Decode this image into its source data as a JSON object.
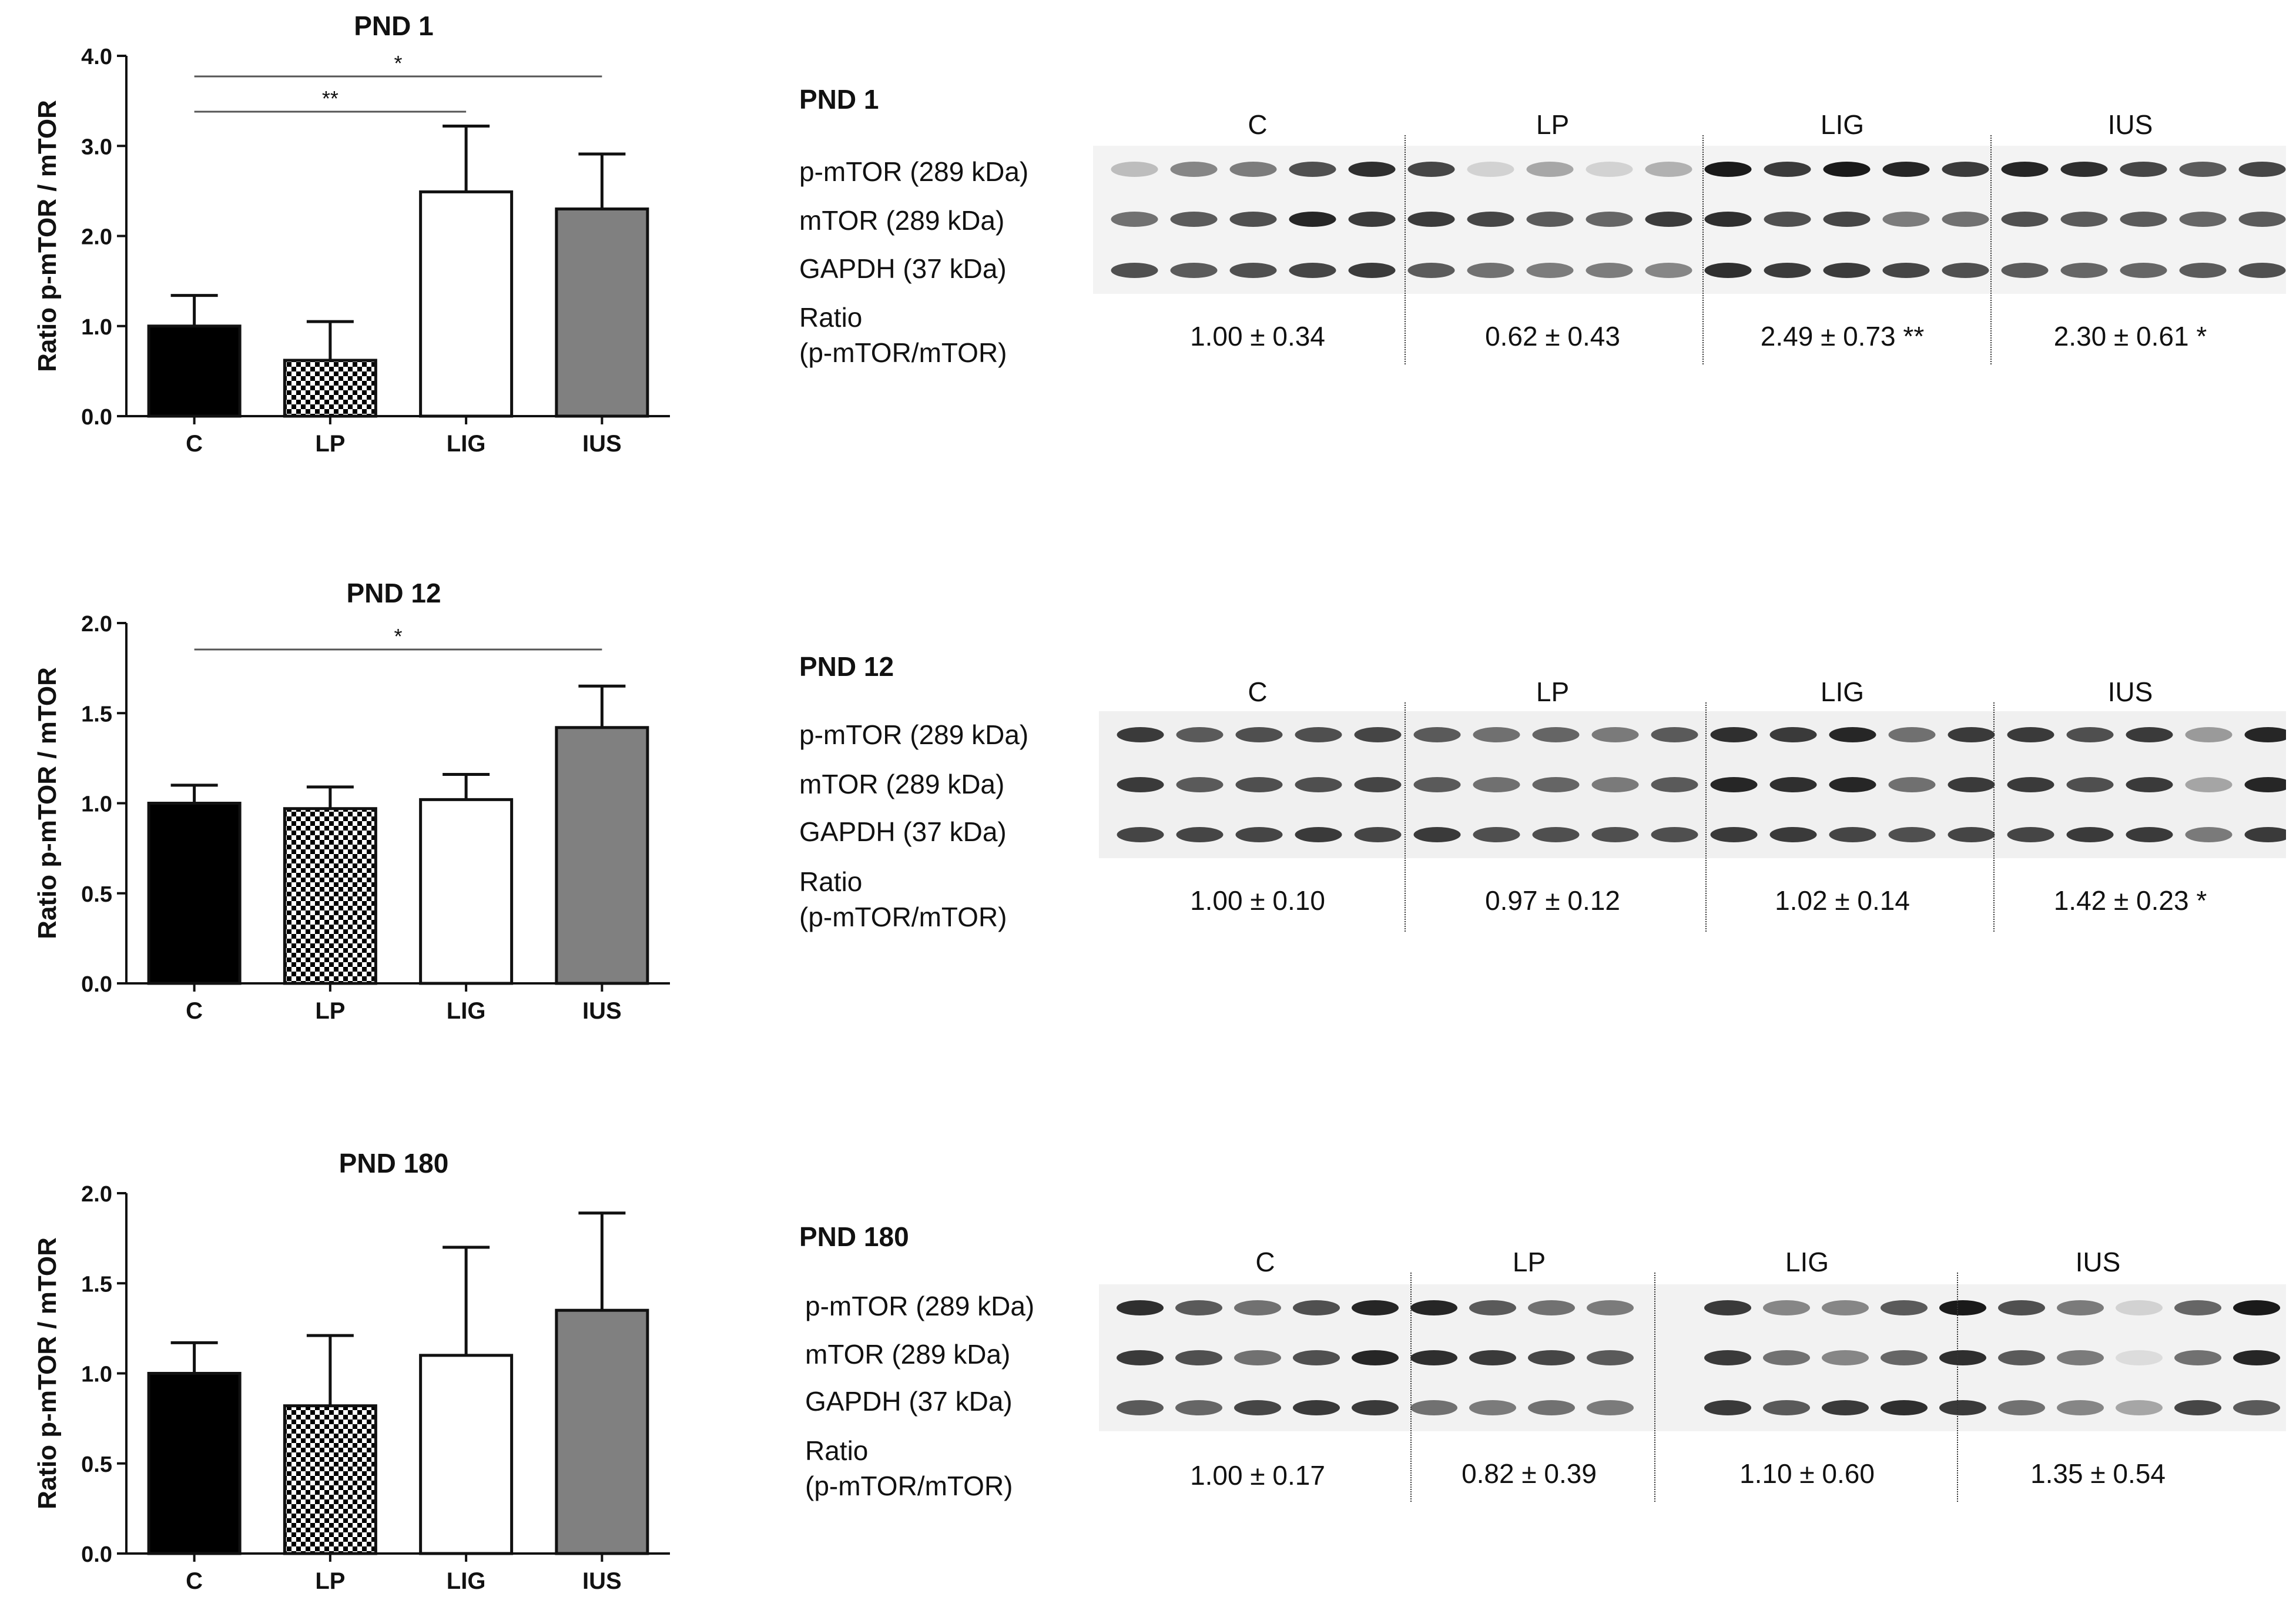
{
  "chart_data": [
    {
      "type": "bar",
      "title": "PND 1",
      "ylabel": "Ratio p-mTOR / mTOR",
      "xlabel": "",
      "categories": [
        "C",
        "LP",
        "LIG",
        "IUS"
      ],
      "values": [
        1.0,
        0.62,
        2.49,
        2.3
      ],
      "errors": [
        0.34,
        0.43,
        0.73,
        0.61
      ],
      "fills": [
        "solid-black",
        "checkered",
        "white",
        "gray"
      ],
      "ylim": [
        0,
        4.0
      ],
      "yticks": [
        "0.0",
        "1.0",
        "2.0",
        "3.0",
        "4.0"
      ],
      "yticks_values": [
        0,
        1,
        2,
        3,
        4
      ],
      "significance": [
        {
          "from": "C",
          "to": "IUS",
          "label": "*"
        },
        {
          "from": "C",
          "to": "LIG",
          "label": "**"
        }
      ]
    },
    {
      "type": "bar",
      "title": "PND 12",
      "ylabel": "Ratio p-mTOR / mTOR",
      "xlabel": "",
      "categories": [
        "C",
        "LP",
        "LIG",
        "IUS"
      ],
      "values": [
        1.0,
        0.97,
        1.02,
        1.42
      ],
      "errors": [
        0.1,
        0.12,
        0.14,
        0.23
      ],
      "fills": [
        "solid-black",
        "checkered",
        "white",
        "gray"
      ],
      "ylim": [
        0,
        2.0
      ],
      "yticks": [
        "0.0",
        "0.5",
        "1.0",
        "1.5",
        "2.0"
      ],
      "yticks_values": [
        0,
        0.5,
        1.0,
        1.5,
        2.0
      ],
      "significance": [
        {
          "from": "C",
          "to": "IUS",
          "label": "*"
        }
      ]
    },
    {
      "type": "bar",
      "title": "PND 180",
      "ylabel": "Ratio p-mTOR / mTOR",
      "xlabel": "",
      "categories": [
        "C",
        "LP",
        "LIG",
        "IUS"
      ],
      "values": [
        1.0,
        0.82,
        1.1,
        1.35
      ],
      "errors": [
        0.17,
        0.39,
        0.6,
        0.54
      ],
      "fills": [
        "solid-black",
        "checkered",
        "white",
        "gray"
      ],
      "ylim": [
        0,
        2.0
      ],
      "yticks": [
        "0.0",
        "0.5",
        "1.0",
        "1.5",
        "2.0"
      ],
      "yticks_values": [
        0,
        0.5,
        1.0,
        1.5,
        2.0
      ],
      "significance": []
    }
  ],
  "blots": [
    {
      "title": "PND 1",
      "groups": [
        "C",
        "LP",
        "LIG",
        "IUS"
      ],
      "rows": [
        "p-mTOR  (289 kDa)",
        "mTOR  (289 kDa)",
        "GAPDH (37 kDa)"
      ],
      "ratio_label_line1": "Ratio",
      "ratio_label_line2": "(p-mTOR/mTOR)",
      "ratios": [
        "1.00 ± 0.34",
        "0.62 ± 0.43",
        "2.49 ± 0.73 **",
        "2.30 ± 0.61 *"
      ]
    },
    {
      "title": "PND 12",
      "groups": [
        "C",
        "LP",
        "LIG",
        "IUS"
      ],
      "rows": [
        "p-mTOR  (289 kDa)",
        "mTOR  (289 kDa)",
        "GAPDH (37 kDa)"
      ],
      "ratio_label_line1": "Ratio",
      "ratio_label_line2": "(p-mTOR/mTOR)",
      "ratios": [
        "1.00 ± 0.10",
        "0.97 ± 0.12",
        "1.02 ± 0.14",
        "1.42 ± 0.23 *"
      ]
    },
    {
      "title": "PND 180",
      "groups": [
        "C",
        "LP",
        "LIG",
        "IUS"
      ],
      "rows": [
        "p-mTOR  (289 kDa)",
        "mTOR  (289 kDa)",
        "GAPDH (37 kDa)"
      ],
      "ratio_label_line1": "Ratio",
      "ratio_label_line2": "(p-mTOR/mTOR)",
      "ratios": [
        "1.00 ± 0.17",
        "0.82 ± 0.39",
        "1.10 ± 0.60",
        "1.35 ± 0.54"
      ]
    }
  ],
  "colors": {
    "bar_black": "#000000",
    "bar_gray": "#808080",
    "bar_white": "#ffffff",
    "band": "#1a1a1a"
  }
}
